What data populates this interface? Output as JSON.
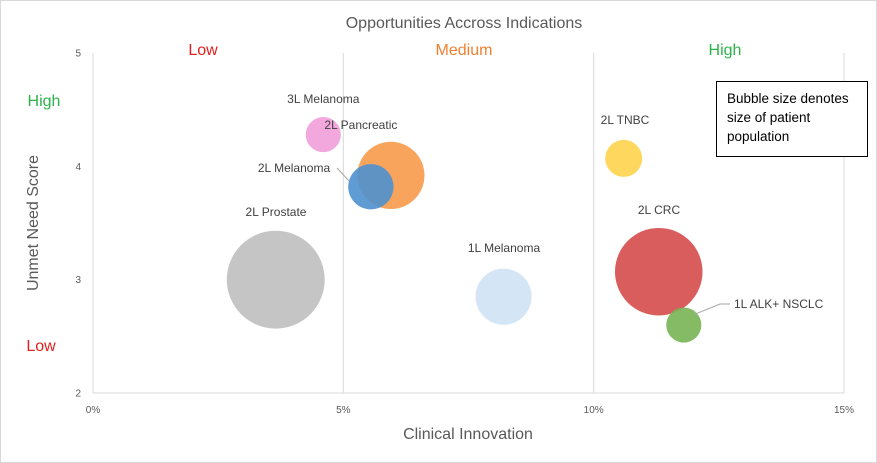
{
  "chart_data": {
    "type": "scatter",
    "title": "Opportunities Accross Indications",
    "xlabel": "Clinical Innovation",
    "ylabel": "Unmet Need Score",
    "xlim": [
      0,
      15
    ],
    "ylim": [
      2,
      5
    ],
    "x_ticks": [
      0,
      5,
      10,
      15
    ],
    "x_tick_labels": [
      "0%",
      "5%",
      "10%",
      "15%"
    ],
    "y_ticks": [
      2,
      3,
      4,
      5
    ],
    "y_tick_labels": [
      "2",
      "3",
      "4",
      "5"
    ],
    "grid": "vertical lines at 0%, 5%, 10%, 15%",
    "column_labels": [
      {
        "label": "Low",
        "color": "#e02020"
      },
      {
        "label": "Medium",
        "color": "#f08030"
      },
      {
        "label": "High",
        "color": "#2db34a"
      }
    ],
    "row_labels": [
      {
        "label": "High",
        "color": "#2db34a"
      },
      {
        "label": "Low",
        "color": "#e02020"
      }
    ],
    "annotation": "Bubble size denotes size of patient population",
    "points": [
      {
        "name": "3L Melanoma",
        "x": 4.6,
        "y": 4.28,
        "size": 0.9,
        "color": "#f29fd9"
      },
      {
        "name": "2L Pancreatic",
        "x": 5.95,
        "y": 3.92,
        "size": 3.3,
        "color": "#f79a4b"
      },
      {
        "name": "2L Melanoma",
        "x": 5.55,
        "y": 3.82,
        "size": 1.5,
        "color": "#4e91cf"
      },
      {
        "name": "2L Prostate",
        "x": 3.65,
        "y": 3.0,
        "size": 7.0,
        "color": "#bfbfbf"
      },
      {
        "name": "1L Melanoma",
        "x": 8.2,
        "y": 2.85,
        "size": 2.3,
        "color": "#cfe2f5"
      },
      {
        "name": "2L TNBC",
        "x": 10.6,
        "y": 4.07,
        "size": 1.0,
        "color": "#fdd34d"
      },
      {
        "name": "2L CRC",
        "x": 11.3,
        "y": 3.07,
        "size": 5.6,
        "color": "#d64b4b"
      },
      {
        "name": "1L ALK+ NSCLC",
        "x": 11.8,
        "y": 2.6,
        "size": 0.9,
        "color": "#79b455"
      }
    ]
  }
}
